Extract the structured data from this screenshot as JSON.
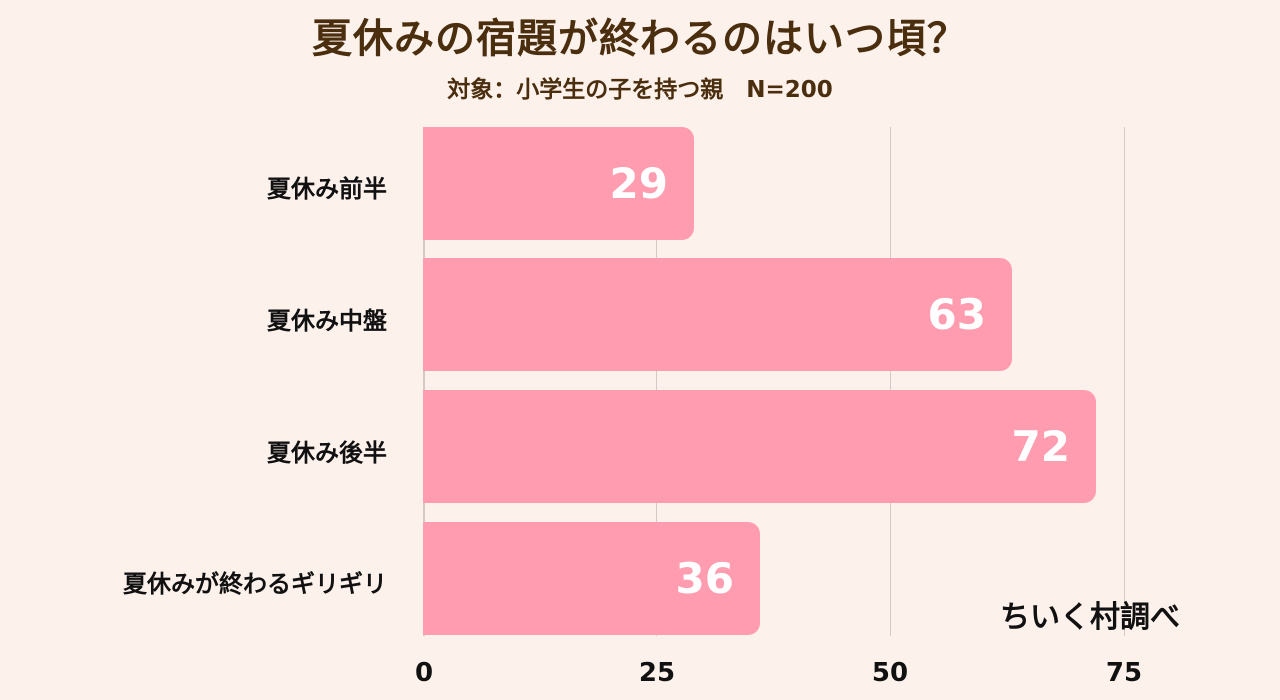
{
  "header": {
    "title": "夏休みの宿題が終わるのはいつ頃？",
    "subtitle": "対象：小学生の子を持つ親　N=200"
  },
  "source": "ちいく村調べ",
  "colors": {
    "background": "#fdf1ec",
    "bar": "#ff9caf",
    "title": "#4a2e0e",
    "gridline": "#d4c9c6"
  },
  "chart_data": {
    "type": "bar",
    "orientation": "horizontal",
    "title": "夏休みの宿題が終わるのはいつ頃？",
    "subtitle": "対象：小学生の子を持つ親　N=200",
    "categories": [
      "夏休み前半",
      "夏休み中盤",
      "夏休み後半",
      "夏休みが終わるギリギリ"
    ],
    "values": [
      29,
      63,
      72,
      36
    ],
    "xlabel": "",
    "ylabel": "",
    "xlim": [
      0,
      81
    ],
    "xticks": [
      "0",
      "25",
      "50",
      "75"
    ],
    "grid": true,
    "legend": null,
    "annotation": "ちいく村調べ"
  }
}
